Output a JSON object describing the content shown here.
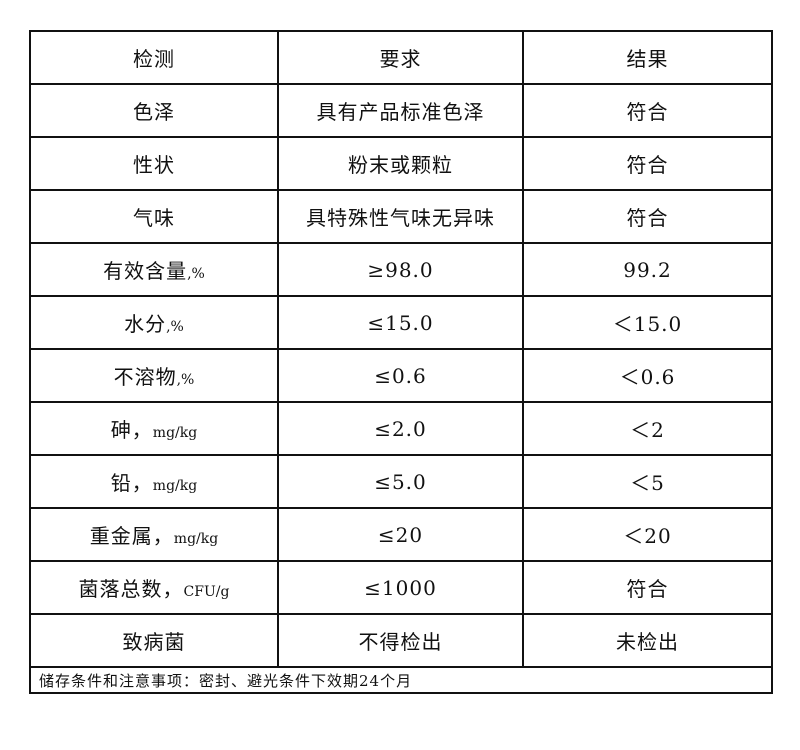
{
  "table": {
    "headers": [
      "检测",
      "要求",
      "结果"
    ],
    "rows": [
      {
        "item": "色泽",
        "unit": "",
        "requirement": "具有产品标准色泽",
        "result": "符合"
      },
      {
        "item": "性状",
        "unit": "",
        "requirement": "粉末或颗粒",
        "result": "符合"
      },
      {
        "item": "气味",
        "unit": "",
        "requirement": "具特殊性气味无异味",
        "result": "符合"
      },
      {
        "item": "有效含量",
        "unit": ",%",
        "requirement": "≥98.0",
        "result": "99.2"
      },
      {
        "item": "水分",
        "unit": ",%",
        "requirement": "≤15.0",
        "result": "＜15.0"
      },
      {
        "item": "不溶物",
        "unit": ",%",
        "requirement": "≤0.6",
        "result": "＜0.6"
      },
      {
        "item": "砷，",
        "unit": "mg/kg",
        "requirement": "≤2.0",
        "result": "＜2"
      },
      {
        "item": "铅，",
        "unit": "mg/kg",
        "requirement": "≤5.0",
        "result": "＜5"
      },
      {
        "item": "重金属，",
        "unit": "mg/kg",
        "requirement": "≤20",
        "result": "＜20"
      },
      {
        "item": "菌落总数，",
        "unit": "CFU/g",
        "requirement": "≤1000",
        "result": "符合"
      },
      {
        "item": "致病菌",
        "unit": "",
        "requirement": "不得检出",
        "result": "未检出"
      }
    ],
    "note": "储存条件和注意事项：密封、避光条件下效期24个月"
  }
}
